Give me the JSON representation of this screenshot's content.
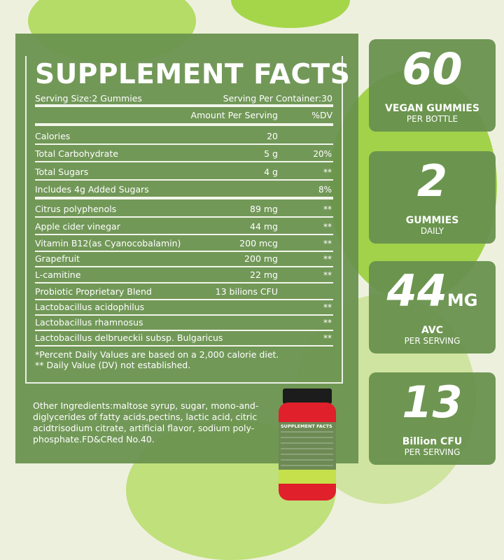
{
  "facts": {
    "title": "SUPPLEMENT FACTS",
    "serving_size": "Serving Size:2 Gummies",
    "servings_per_container": "Serving Per Container:30",
    "col_amount": "Amount Per Serving",
    "col_dv": "%DV",
    "rows": [
      {
        "name": "Calories",
        "amount": "20",
        "dv": ""
      },
      {
        "name": "Total Carbohydrate",
        "amount": "5 g",
        "dv": "20%"
      },
      {
        "name": "Total Sugars",
        "amount": "4 g",
        "dv": "**"
      },
      {
        "name": "Includes 4g Added Sugars",
        "amount": "",
        "dv": "8%"
      },
      {
        "name": "Citrus polyphenols",
        "amount": "89 mg",
        "dv": "**"
      },
      {
        "name": "Apple cider vinegar",
        "amount": "44 mg",
        "dv": "**"
      },
      {
        "name": "Vitamin B12(as Cyanocobalamin)",
        "amount": "200 mcg",
        "dv": "**"
      },
      {
        "name": "Grapefruit",
        "amount": "200 mg",
        "dv": "**"
      },
      {
        "name": "L-camitine",
        "amount": "22 mg",
        "dv": "**"
      },
      {
        "name": "Probiotic Proprietary Blend",
        "amount": "13 bilions CFU",
        "dv": ""
      },
      {
        "name": "Lactobacillus acidophilus",
        "amount": "",
        "dv": "**"
      },
      {
        "name": "Lactobacillus rhamnosus",
        "amount": "",
        "dv": "**"
      },
      {
        "name": "Lactobacillus delbrueckii subsp. Bulgaricus",
        "amount": "",
        "dv": "**"
      }
    ],
    "footnote1": "*Percent Daily Values are based on a 2,000 calorie diet.",
    "footnote2": "** Daily Value (DV) not established."
  },
  "other_ingredients": "Other Ingredients:maltose syrup, sugar, mono-and-diglycerides of fatty acids,pectins, lactic acid, citric acidtrisodium citrate, artificial flavor, sodium poly-phosphate.FD&CRed No.40.",
  "bottle_label": "SUPPLEMENT FACTS",
  "cards": [
    {
      "value": "60",
      "unit": "",
      "line1": "VEGAN GUMMIES",
      "line2": "PER BOTTLE"
    },
    {
      "value": "2",
      "unit": "",
      "line1": "GUMMIES",
      "line2": "DAILY"
    },
    {
      "value": "44",
      "unit": "MG",
      "line1": "AVC",
      "line2": "PER SERVING"
    },
    {
      "value": "13",
      "unit": "",
      "line1": "Billion CFU",
      "line2": "PER SERVING"
    }
  ],
  "colors": {
    "panel": "#68914e",
    "background": "#eef0de",
    "apple": "#a8d84a",
    "bottle": "#e0202a"
  }
}
